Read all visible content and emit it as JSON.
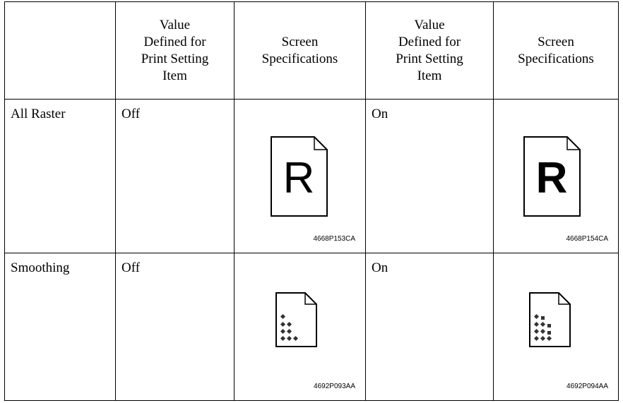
{
  "table": {
    "header": [
      "",
      [
        "Value",
        "Defined for",
        "Print Setting",
        "Item"
      ],
      [
        "Screen",
        "Specifications"
      ],
      [
        "Value",
        "Defined for",
        "Print Setting",
        "Item"
      ],
      [
        "Screen",
        "Specifications"
      ]
    ],
    "rows": [
      {
        "label": "All Raster",
        "off": "Off",
        "off_glyph": "R",
        "off_code": "4668P153CA",
        "on": "On",
        "on_glyph": "R",
        "on_code": "4668P154CA"
      },
      {
        "label": "Smoothing",
        "off": "Off",
        "off_code": "4692P093AA",
        "on": "On",
        "on_code": "4692P094AA"
      }
    ]
  }
}
